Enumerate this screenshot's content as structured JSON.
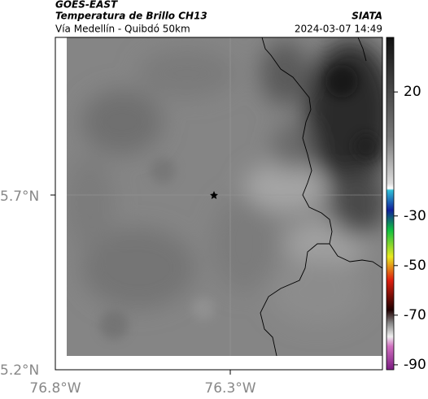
{
  "header": {
    "title": "GOES-EAST",
    "subtitle": "Temperatura de Brillo CH13",
    "location": "Vía Medellín - Quibdó 50km",
    "source": "SIATA",
    "datetime": "2024-03-07 14:49"
  },
  "map": {
    "x_labels": [
      "76.8°W",
      "76.3°W"
    ],
    "y_labels": [
      "5.7°N",
      "5.2°N"
    ]
  },
  "colorbar": {
    "lim": [
      -92,
      42
    ],
    "ticks": [
      20,
      -30,
      -50,
      -70,
      -90
    ]
  }
}
